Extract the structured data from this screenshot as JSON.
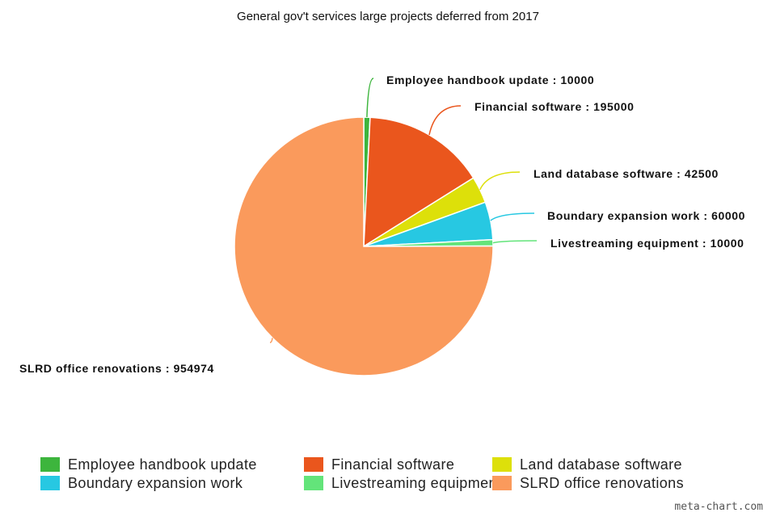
{
  "watermark": "meta-chart.com",
  "chart_data": {
    "type": "pie",
    "title": "General gov't services large projects deferred from 2017",
    "label_separator": " : ",
    "slices": [
      {
        "label": "Employee handbook update",
        "value": 10000,
        "color": "#3db53d"
      },
      {
        "label": "Financial software",
        "value": 195000,
        "color": "#ea561d"
      },
      {
        "label": "Land database software",
        "value": 42500,
        "color": "#dde00a"
      },
      {
        "label": "Boundary expansion work",
        "value": 60000,
        "color": "#27c8e2"
      },
      {
        "label": "Livestreaming equipment",
        "value": 10000,
        "color": "#63e47a"
      },
      {
        "label": "SLRD office renovations",
        "value": 954974,
        "color": "#fa9a5c"
      }
    ],
    "legend": {
      "placement": "bottom"
    },
    "start_angle_deg": 0,
    "direction": "clockwise"
  }
}
